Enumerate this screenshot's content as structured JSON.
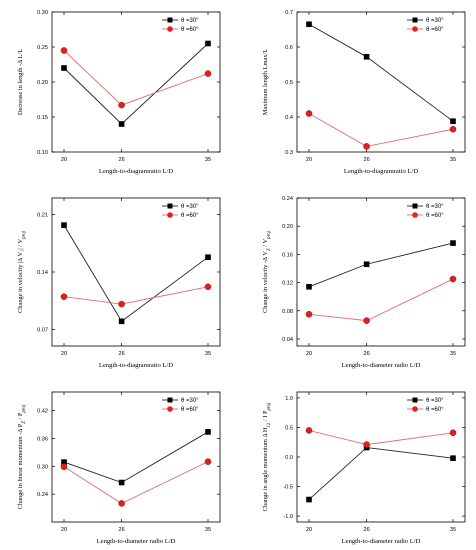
{
  "colors": {
    "series1": "#000000",
    "series2": "#e02020"
  },
  "chart_data": [
    {
      "type": "line",
      "x": [
        20,
        26,
        35
      ],
      "xticks": [
        "20",
        "26",
        "35"
      ],
      "xlabel": "Length-to-diagramratio L/D",
      "ylabel": "Decrease in length -Δ L/L",
      "ylim": [
        0.1,
        0.3
      ],
      "yticks": [
        0.1,
        0.15,
        0.2,
        0.25,
        0.3
      ],
      "ytick_labels": [
        "0.10",
        "0.15",
        "0.20",
        "0.25",
        "0.30"
      ],
      "legend": "top-right",
      "series": [
        {
          "name": "θ =30°",
          "values": [
            0.22,
            0.14,
            0.255
          ]
        },
        {
          "name": "θ =60°",
          "values": [
            0.245,
            0.167,
            0.212
          ]
        }
      ]
    },
    {
      "type": "line",
      "x": [
        20,
        26,
        35
      ],
      "xticks": [
        "20",
        "26",
        "35"
      ],
      "xlabel": "Length-to-diagramratio L/D",
      "ylabel": "Maximum length Lmax/L",
      "ylim": [
        0.3,
        0.7
      ],
      "yticks": [
        0.3,
        0.4,
        0.5,
        0.6,
        0.7
      ],
      "ytick_labels": [
        "0.3",
        "0.4",
        "0.5",
        "0.6",
        "0.7"
      ],
      "legend": "top-right",
      "series": [
        {
          "name": "θ =30°",
          "values": [
            0.665,
            0.572,
            0.388
          ]
        },
        {
          "name": "θ =60°",
          "values": [
            0.41,
            0.316,
            0.365
          ]
        }
      ]
    },
    {
      "type": "line",
      "x": [
        20,
        26,
        35
      ],
      "xticks": [
        "20",
        "26",
        "35"
      ],
      "xlabel": "Length-to-diagramratio L/D",
      "ylabel": "Change in velocity |Δ V₁| / V_proj",
      "ylim": [
        0.05,
        0.23
      ],
      "yticks": [
        0.07,
        0.14,
        0.21
      ],
      "ytick_labels": [
        "0.07",
        "0.14",
        "0.21"
      ],
      "legend": "top-right",
      "series": [
        {
          "name": "θ =30°",
          "values": [
            0.197,
            0.08,
            0.158
          ]
        },
        {
          "name": "θ =60°",
          "values": [
            0.11,
            0.101,
            0.122
          ]
        }
      ]
    },
    {
      "type": "line",
      "x": [
        20,
        26,
        35
      ],
      "xticks": [
        "20",
        "26",
        "35"
      ],
      "xlabel": "Length-to-diameter radio L/D",
      "ylabel": "Change in velocity -Δ V_Z / V_proj",
      "ylim": [
        0.03,
        0.24
      ],
      "yticks": [
        0.04,
        0.08,
        0.12,
        0.16,
        0.2,
        0.24
      ],
      "ytick_labels": [
        "0.04",
        "0.08",
        "0.12",
        "0.16",
        "0.20",
        "0.24"
      ],
      "legend": "top-right",
      "series": [
        {
          "name": "θ =30°",
          "values": [
            0.114,
            0.146,
            0.176
          ]
        },
        {
          "name": "θ =60°",
          "values": [
            0.075,
            0.066,
            0.125
          ]
        }
      ]
    },
    {
      "type": "line",
      "x": [
        20,
        26,
        35
      ],
      "xticks": [
        "20",
        "26",
        "35"
      ],
      "xlabel": "Length-to-diameter radio L/D",
      "ylabel": "Change in linear momentum -Δ P_Z / P_proj",
      "ylim": [
        0.18,
        0.46
      ],
      "yticks": [
        0.24,
        0.3,
        0.36,
        0.42
      ],
      "ytick_labels": [
        "0.24",
        "0.30",
        "0.36",
        "0.42"
      ],
      "legend": "top-right",
      "series": [
        {
          "name": "θ =30°",
          "values": [
            0.309,
            0.265,
            0.374
          ]
        },
        {
          "name": "θ =60°",
          "values": [
            0.299,
            0.22,
            0.31
          ]
        }
      ]
    },
    {
      "type": "line",
      "x": [
        20,
        26,
        35
      ],
      "xticks": [
        "20",
        "26",
        "35"
      ],
      "xlabel": "Length-to-diameter radio L/D",
      "ylabel": "Change in angle momentum Δ H_12 / I P_proj",
      "ylim": [
        -1.1,
        1.1
      ],
      "yticks": [
        -1.0,
        -0.5,
        0.0,
        0.5,
        1.0
      ],
      "ytick_labels": [
        "-1.0",
        "-0.5",
        "0.0",
        "0.5",
        "1.0"
      ],
      "legend": "top-right",
      "series": [
        {
          "name": "θ =30°",
          "values": [
            -0.72,
            0.16,
            -0.02
          ]
        },
        {
          "name": "θ =60°",
          "values": [
            0.45,
            0.21,
            0.41
          ]
        }
      ]
    }
  ]
}
